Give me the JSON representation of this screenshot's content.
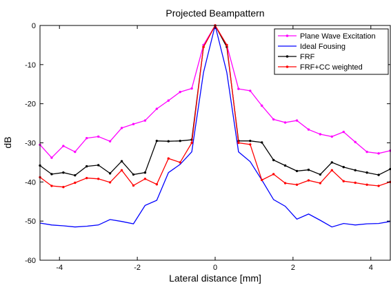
{
  "chart_data": {
    "type": "line",
    "title": "Projected Beampattern",
    "xlabel": "Lateral distance [mm]",
    "ylabel": "dB",
    "xlim": [
      -4.5,
      4.5
    ],
    "ylim": [
      -60,
      0
    ],
    "xticks": [
      -4,
      -2,
      0,
      2,
      4
    ],
    "yticks": [
      0,
      -10,
      -20,
      -30,
      -40,
      -50,
      -60
    ],
    "grid": false,
    "legend_position": "top-right",
    "x": [
      -4.5,
      -4.2,
      -3.9,
      -3.6,
      -3.3,
      -3.0,
      -2.7,
      -2.4,
      -2.1,
      -1.8,
      -1.5,
      -1.2,
      -0.9,
      -0.6,
      -0.3,
      0.0,
      0.3,
      0.6,
      0.9,
      1.2,
      1.5,
      1.8,
      2.1,
      2.4,
      2.7,
      3.0,
      3.3,
      3.6,
      3.9,
      4.2,
      4.5
    ],
    "series": [
      {
        "name": "Plane Wave Excitation",
        "color": "#ff00ff",
        "marker": true,
        "values": [
          -30.5,
          -33.8,
          -30.8,
          -32.3,
          -28.8,
          -28.4,
          -29.6,
          -26.2,
          -25.2,
          -24.3,
          -21.3,
          -19.2,
          -17.0,
          -16.1,
          -5.0,
          0.0,
          -5.0,
          -16.2,
          -16.7,
          -20.5,
          -24.0,
          -24.8,
          -24.3,
          -26.6,
          -27.8,
          -28.4,
          -27.2,
          -29.8,
          -32.3,
          -32.7,
          -32.0
        ]
      },
      {
        "name": "Ideal Fousing",
        "color": "#0000ff",
        "marker": false,
        "values": [
          -50.5,
          -51.0,
          -51.2,
          -51.5,
          -51.3,
          -51.0,
          -49.6,
          -50.1,
          -50.7,
          -46.0,
          -44.7,
          -37.6,
          -35.5,
          -32.3,
          -12.0,
          0.0,
          -12.0,
          -32.3,
          -34.8,
          -39.5,
          -44.5,
          -46.2,
          -49.5,
          -48.2,
          -49.8,
          -51.5,
          -50.6,
          -51.0,
          -50.7,
          -50.6,
          -50.1
        ]
      },
      {
        "name": "FRF",
        "color": "#000000",
        "marker": true,
        "values": [
          -35.8,
          -38.0,
          -37.6,
          -38.3,
          -36.0,
          -35.7,
          -37.8,
          -34.7,
          -38.1,
          -37.6,
          -29.5,
          -29.6,
          -29.5,
          -29.2,
          -5.5,
          0.0,
          -5.5,
          -29.5,
          -29.5,
          -29.9,
          -34.4,
          -35.8,
          -37.2,
          -36.9,
          -38.1,
          -35.0,
          -36.2,
          -37.0,
          -37.6,
          -38.2,
          -36.7
        ]
      },
      {
        "name": "FRF+CC weighted",
        "color": "#ff0000",
        "marker": true,
        "values": [
          -38.8,
          -41.0,
          -41.3,
          -40.2,
          -39.0,
          -39.2,
          -40.1,
          -37.0,
          -40.9,
          -39.2,
          -40.6,
          -34.0,
          -35.0,
          -30.0,
          -5.5,
          0.0,
          -5.0,
          -30.0,
          -30.4,
          -39.5,
          -38.0,
          -40.3,
          -40.7,
          -39.6,
          -40.3,
          -37.0,
          -39.8,
          -40.2,
          -40.7,
          -41.0,
          -40.0
        ]
      }
    ]
  }
}
